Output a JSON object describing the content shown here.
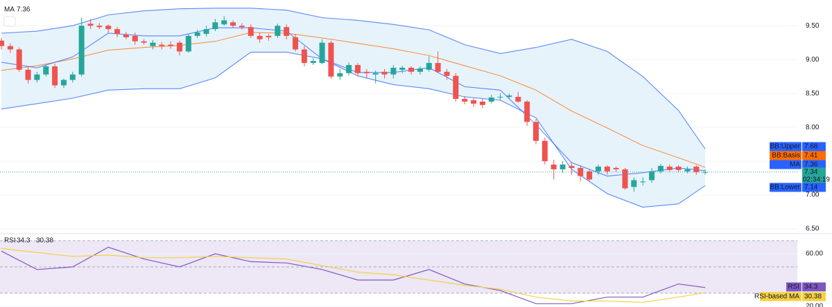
{
  "chart_data": [
    {
      "type": "candlestick",
      "up_color": "#26a69a",
      "down_color": "#ef5350",
      "open": [
        9.28,
        9.2,
        9.15,
        8.85,
        8.7,
        8.78,
        8.9,
        8.62,
        8.7,
        8.78,
        9.53,
        9.5,
        9.5,
        9.45,
        9.37,
        9.35,
        9.27,
        9.2,
        9.22,
        9.22,
        9.25,
        9.12,
        9.35,
        9.38,
        9.45,
        9.52,
        9.55,
        9.5,
        9.48,
        9.35,
        9.35,
        9.35,
        9.48,
        9.33,
        9.15,
        8.95,
        8.95,
        9.25,
        8.75,
        8.8,
        8.92,
        8.82,
        8.78,
        8.82,
        8.78,
        8.85,
        8.88,
        8.82,
        8.85,
        8.95,
        8.82,
        8.76,
        8.42,
        8.4,
        8.38,
        8.38,
        8.44,
        8.45,
        8.45,
        8.38,
        8.08,
        7.8,
        7.45,
        7.38,
        7.43,
        7.4,
        7.35,
        7.35,
        7.42,
        7.4,
        7.38,
        7.12,
        7.2,
        7.22,
        7.35,
        7.42,
        7.42,
        7.35,
        7.42,
        7.34
      ],
      "high": [
        9.32,
        9.24,
        9.18,
        8.9,
        8.82,
        8.93,
        8.94,
        8.72,
        8.82,
        9.62,
        9.6,
        9.54,
        9.52,
        9.48,
        9.41,
        9.4,
        9.3,
        9.29,
        9.26,
        9.27,
        9.28,
        9.38,
        9.44,
        9.5,
        9.6,
        9.64,
        9.58,
        9.54,
        9.52,
        9.4,
        9.38,
        9.53,
        9.52,
        9.38,
        9.2,
        9.02,
        9.3,
        9.28,
        8.86,
        8.96,
        8.95,
        8.86,
        8.84,
        8.86,
        8.92,
        8.91,
        8.9,
        8.9,
        9.05,
        9.12,
        8.86,
        8.8,
        8.46,
        8.43,
        8.42,
        8.48,
        8.5,
        8.5,
        8.52,
        8.4,
        8.12,
        7.85,
        7.52,
        7.5,
        7.48,
        7.44,
        7.38,
        7.45,
        7.44,
        7.42,
        7.4,
        7.26,
        7.26,
        7.4,
        7.46,
        7.45,
        7.44,
        7.42,
        7.44,
        7.38
      ],
      "low": [
        9.15,
        9.1,
        8.82,
        8.65,
        8.66,
        8.75,
        8.58,
        8.58,
        8.66,
        8.75,
        9.45,
        9.45,
        9.4,
        9.33,
        9.3,
        9.22,
        9.22,
        9.15,
        9.15,
        9.16,
        9.06,
        9.1,
        9.32,
        9.34,
        9.42,
        9.5,
        9.47,
        9.44,
        9.32,
        9.25,
        9.28,
        9.32,
        9.3,
        9.12,
        8.9,
        8.92,
        8.93,
        8.72,
        8.7,
        8.77,
        8.75,
        8.72,
        8.65,
        8.72,
        8.72,
        8.8,
        8.78,
        8.78,
        8.82,
        8.8,
        8.7,
        8.38,
        8.34,
        8.3,
        8.28,
        8.35,
        8.4,
        8.42,
        8.36,
        8.02,
        7.75,
        7.45,
        7.23,
        7.33,
        7.3,
        7.2,
        7.2,
        7.3,
        7.3,
        7.34,
        7.08,
        7.05,
        7.14,
        7.18,
        7.32,
        7.35,
        7.33,
        7.32,
        7.3,
        7.3
      ],
      "close": [
        9.2,
        9.15,
        8.85,
        8.7,
        8.78,
        8.9,
        8.62,
        8.7,
        8.78,
        9.5,
        9.5,
        9.48,
        9.45,
        9.38,
        9.33,
        9.27,
        9.25,
        9.25,
        9.2,
        9.2,
        9.12,
        9.35,
        9.4,
        9.45,
        9.55,
        9.58,
        9.5,
        9.48,
        9.35,
        9.3,
        9.33,
        9.5,
        9.35,
        9.15,
        8.95,
        8.98,
        9.25,
        8.75,
        8.8,
        8.92,
        8.8,
        8.8,
        8.8,
        8.78,
        8.88,
        8.88,
        8.82,
        8.87,
        8.95,
        8.82,
        8.76,
        8.42,
        8.38,
        8.35,
        8.33,
        8.44,
        8.45,
        8.47,
        8.38,
        8.08,
        7.8,
        7.5,
        7.38,
        7.45,
        7.4,
        7.28,
        7.23,
        7.42,
        7.35,
        7.38,
        7.1,
        7.22,
        7.2,
        7.35,
        7.43,
        7.37,
        7.37,
        7.38,
        7.34,
        7.34
      ],
      "countdown": "02:34:19",
      "band_fill": "#e6f3fb",
      "overlay": {
        "x": [
          0,
          4,
          8,
          12,
          16,
          20,
          24,
          28,
          32,
          36,
          40,
          44,
          48,
          52,
          56,
          60,
          64,
          68,
          72,
          76,
          79
        ],
        "series": [
          {
            "name": "BB:Upper",
            "color": "#2962ff",
            "values": [
              9.39,
              9.42,
              9.5,
              9.66,
              9.72,
              9.75,
              9.76,
              9.76,
              9.73,
              9.62,
              9.58,
              9.52,
              9.44,
              9.22,
              9.09,
              9.18,
              9.3,
              9.12,
              8.75,
              8.25,
              7.68
            ]
          },
          {
            "name": "BB:Basis",
            "color": "#ff6d00",
            "values": [
              8.84,
              8.91,
              9.01,
              9.14,
              9.18,
              9.21,
              9.27,
              9.4,
              9.39,
              9.32,
              9.24,
              9.16,
              9.06,
              8.91,
              8.76,
              8.55,
              8.24,
              7.99,
              7.73,
              7.55,
              7.41
            ]
          },
          {
            "name": "MA",
            "color": "#2962ff",
            "values": [
              8.96,
              8.88,
              9.04,
              9.39,
              9.35,
              9.35,
              9.47,
              9.47,
              9.42,
              9.01,
              8.81,
              8.81,
              8.88,
              8.6,
              8.55,
              8.04,
              7.48,
              7.28,
              7.33,
              7.4,
              7.36
            ]
          },
          {
            "name": "BB:Lower",
            "color": "#2962ff",
            "values": [
              8.27,
              8.35,
              8.43,
              8.55,
              8.57,
              8.57,
              8.73,
              9.11,
              9.11,
              9.01,
              8.76,
              8.63,
              8.57,
              8.45,
              8.4,
              8.14,
              7.38,
              7.02,
              6.82,
              6.87,
              7.14
            ]
          }
        ]
      },
      "ylim": [
        6.46,
        9.88
      ],
      "yticks": [
        {
          "value": 6.5,
          "label": "6.50"
        },
        {
          "value": 7,
          "label": "7.00"
        },
        {
          "value": 7.5,
          "label": "7.50"
        },
        {
          "value": 8,
          "label": "8.00"
        },
        {
          "value": 8.5,
          "label": "8.50"
        },
        {
          "value": 9,
          "label": "9.00"
        },
        {
          "value": 9.5,
          "label": "9.50"
        }
      ]
    },
    {
      "type": "line",
      "x": [
        0,
        4,
        8,
        12,
        16,
        20,
        24,
        28,
        32,
        36,
        40,
        44,
        48,
        52,
        56,
        60,
        64,
        68,
        72,
        76,
        79
      ],
      "series": [
        {
          "name": "RSI",
          "color": "#7e57c2",
          "values": [
            62,
            48,
            50,
            65,
            56,
            50,
            60,
            54,
            53,
            48,
            40,
            40,
            48,
            37,
            32,
            22,
            22,
            27,
            27,
            37,
            34.3
          ]
        },
        {
          "name": "RSI-based MA",
          "color": "#f5d142",
          "values": [
            64,
            61,
            58,
            59,
            57,
            57,
            58,
            57,
            56,
            51,
            46,
            44,
            40,
            36,
            33,
            27,
            24,
            24,
            23,
            27,
            30.38
          ]
        }
      ],
      "bands": [
        30,
        50,
        70
      ],
      "band_fill": "#ede7f6",
      "ylim": [
        19.5,
        74.2
      ],
      "yticks": [
        {
          "value": 20,
          "label": "20.00"
        },
        {
          "value": 60,
          "label": "60.00"
        }
      ]
    }
  ]
}
